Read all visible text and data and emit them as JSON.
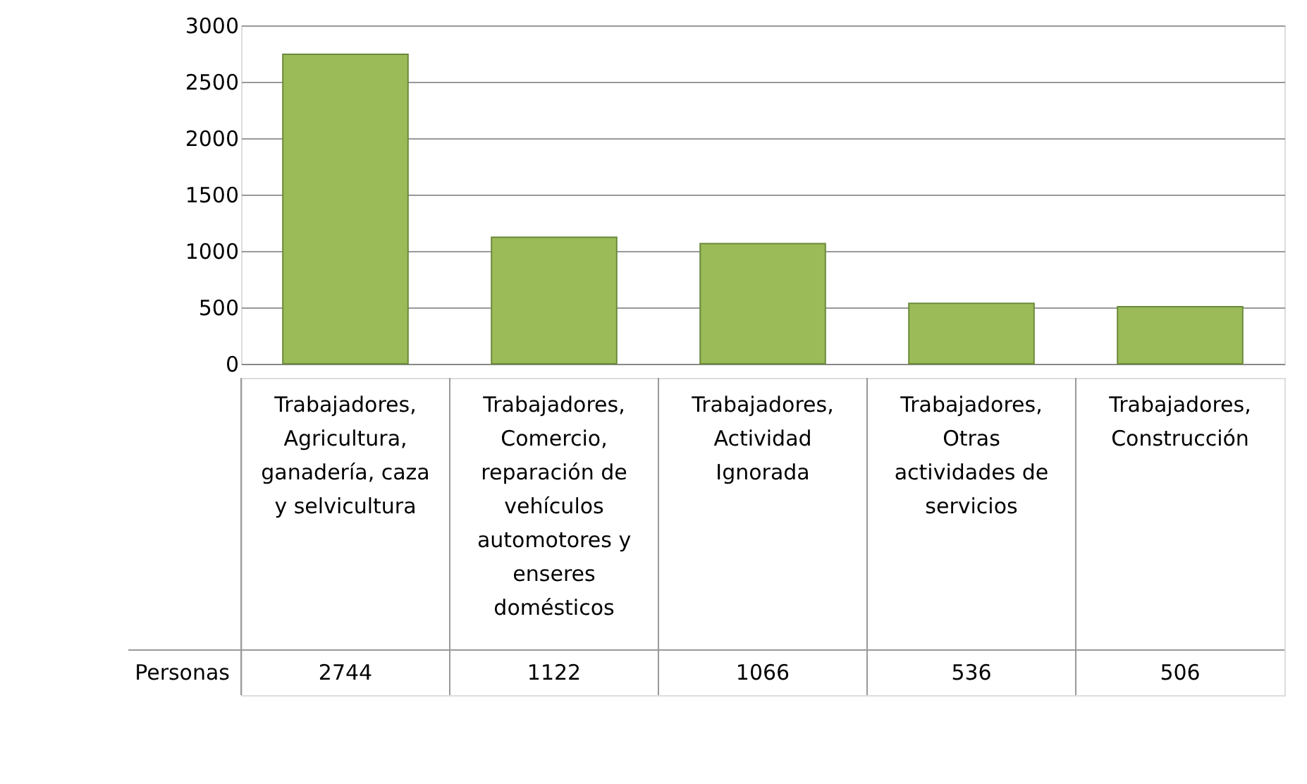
{
  "chart_data": {
    "type": "bar",
    "categories": [
      "Trabajadores, Agricultura, ganadería, caza y selvicultura",
      "Trabajadores, Comercio, reparación de vehículos automotores y enseres domésticos",
      "Trabajadores, Actividad Ignorada",
      "Trabajadores, Otras actividades de servicios",
      "Trabajadores, Construcción"
    ],
    "series": [
      {
        "name": "Personas",
        "color": "#9bbb59",
        "values": [
          2744,
          1122,
          1066,
          536,
          506
        ]
      }
    ],
    "ylim": [
      0,
      3000
    ],
    "yticks": [
      0,
      500,
      1000,
      1500,
      2000,
      2500,
      3000
    ],
    "grid": "y",
    "data_labels": true
  }
}
